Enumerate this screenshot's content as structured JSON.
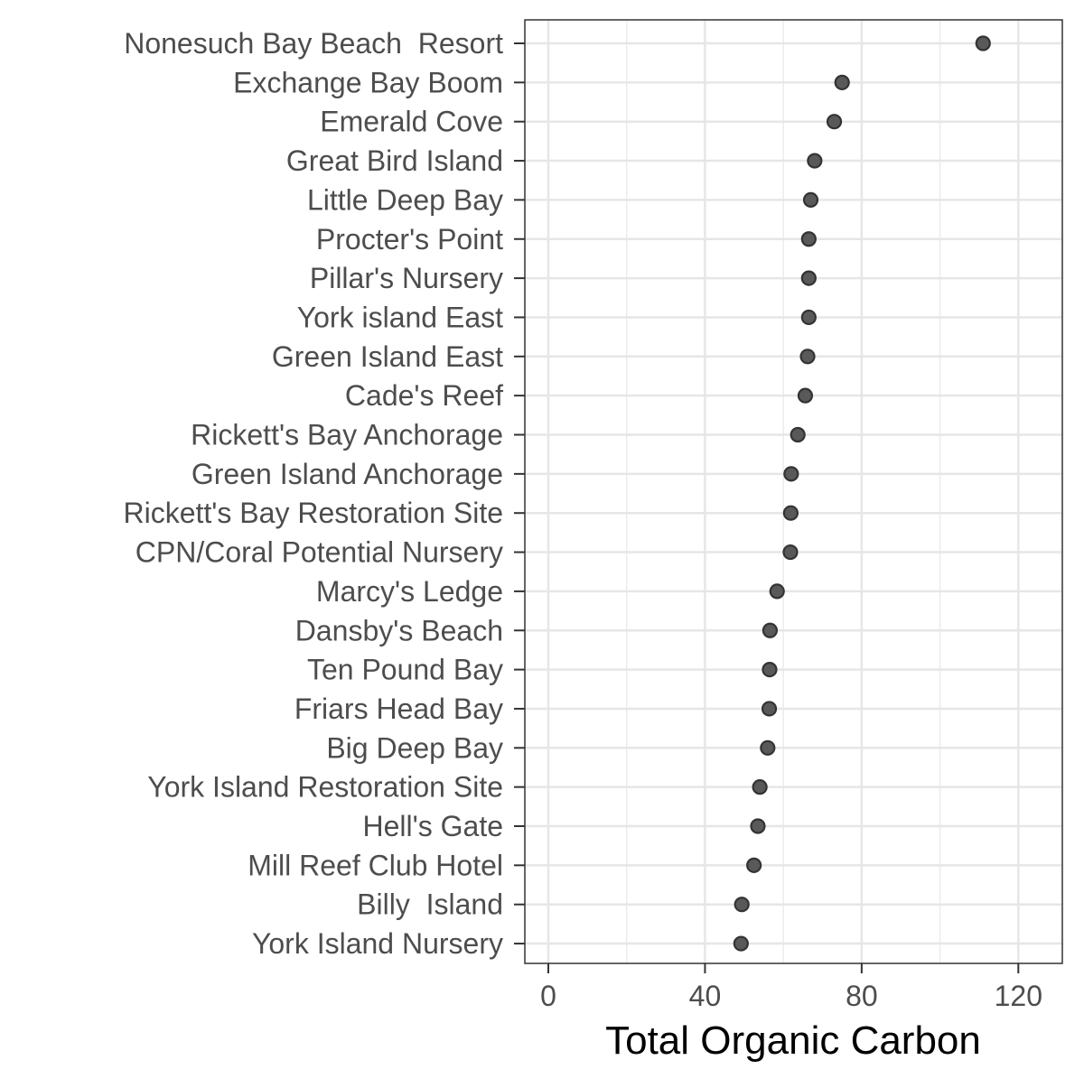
{
  "chart_data": {
    "type": "scatter",
    "title": "",
    "xlabel": "Total Organic Carbon",
    "ylabel": "",
    "xlim": [
      -6,
      131
    ],
    "xticks": [
      0,
      40,
      80,
      120
    ],
    "grid": true,
    "categories": [
      "Nonesuch Bay Beach  Resort",
      "Exchange Bay Boom",
      "Emerald Cove",
      "Great Bird Island",
      "Little Deep Bay",
      "Procter's Point",
      "Pillar's Nursery",
      "York island East",
      "Green Island East",
      "Cade's Reef",
      "Rickett's Bay Anchorage",
      "Green Island Anchorage",
      "Rickett's Bay Restoration Site",
      "CPN/Coral Potential Nursery",
      "Marcy's Ledge",
      "Dansby's Beach",
      "Ten Pound Bay",
      "Friars Head Bay",
      "Big Deep Bay",
      "York Island Restoration Site",
      "Hell's Gate",
      "Mill Reef Club Hotel",
      "Billy  Island",
      "York Island Nursery"
    ],
    "values": [
      111.0,
      75.0,
      73.0,
      68.0,
      67.0,
      66.5,
      66.5,
      66.5,
      66.2,
      65.6,
      63.7,
      62.0,
      61.9,
      61.8,
      58.4,
      56.6,
      56.5,
      56.4,
      56.0,
      54.0,
      53.5,
      52.5,
      49.4,
      49.2
    ],
    "marker_color": "#595959"
  }
}
